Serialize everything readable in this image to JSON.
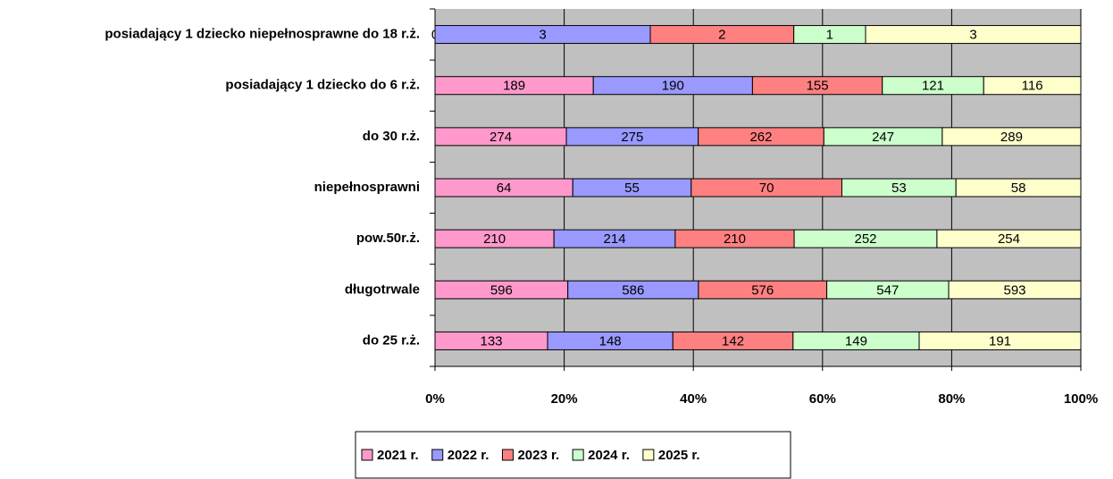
{
  "chart_data": {
    "type": "bar",
    "orientation": "horizontal",
    "stacked": "percent",
    "categories": [
      "posiadający 1 dziecko niepełnosprawne do 18 r.ż.",
      "posiadający 1 dziecko do 6 r.ż.",
      "do 30 r.ż.",
      "niepełnosprawni",
      "pow.50r.ż.",
      "długotrwale",
      "do 25 r.ż."
    ],
    "series": [
      {
        "name": "2021 r.",
        "color": "#ff99cc",
        "values": [
          0,
          189,
          274,
          64,
          210,
          596,
          133
        ]
      },
      {
        "name": "2022 r.",
        "color": "#9999ff",
        "values": [
          3,
          190,
          275,
          55,
          214,
          586,
          148
        ]
      },
      {
        "name": "2023 r.",
        "color": "#ff8080",
        "values": [
          2,
          155,
          262,
          70,
          210,
          576,
          142
        ]
      },
      {
        "name": "2024 r.",
        "color": "#ccffcc",
        "values": [
          1,
          121,
          247,
          53,
          252,
          547,
          149
        ]
      },
      {
        "name": "2025 r.",
        "color": "#ffffcc",
        "values": [
          3,
          116,
          289,
          58,
          254,
          593,
          191
        ]
      }
    ],
    "xlim": [
      0,
      100
    ],
    "xticks": [
      {
        "value": 0,
        "label": "0%"
      },
      {
        "value": 20,
        "label": "20%"
      },
      {
        "value": 40,
        "label": "40%"
      },
      {
        "value": 60,
        "label": "60%"
      },
      {
        "value": 80,
        "label": "80%"
      },
      {
        "value": 100,
        "label": "100%"
      }
    ],
    "grid": true,
    "legend": "bottom"
  }
}
